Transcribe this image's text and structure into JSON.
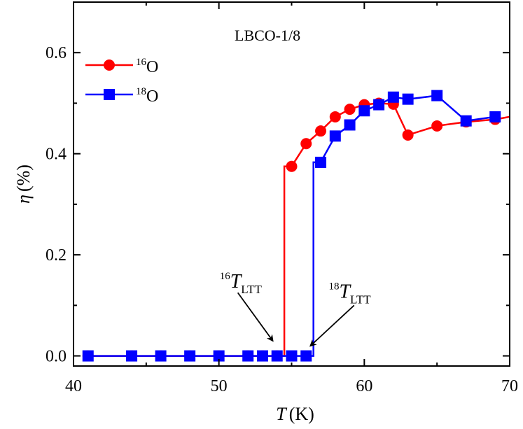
{
  "chart_data": {
    "type": "line",
    "title": "LBCO-1/8",
    "xlabel": {
      "symbol": "T",
      "unit": "(K)"
    },
    "ylabel": {
      "symbol": "η",
      "unit": "(%)"
    },
    "xlim": [
      40,
      70
    ],
    "ylim": [
      -0.02,
      0.7
    ],
    "xticks": [
      40,
      50,
      60,
      70
    ],
    "yticks": [
      0.0,
      0.2,
      0.4,
      0.6
    ],
    "xtick_labels": [
      "40",
      "50",
      "60",
      "70"
    ],
    "ytick_labels": [
      "0.0",
      "0.2",
      "0.4",
      "0.6"
    ],
    "grid": false,
    "legend_position": "top-left",
    "series": [
      {
        "name": "16O",
        "label_sup": "16",
        "label_main": "O",
        "color": "#ff0000",
        "marker": "circle",
        "x": [
          41,
          44,
          46,
          48,
          50,
          52,
          53,
          54,
          55,
          56,
          57,
          58,
          59,
          60,
          61,
          62,
          63,
          65,
          67,
          69,
          70
        ],
        "y": [
          0,
          0,
          0,
          0,
          0,
          0,
          0,
          0,
          0.375,
          0.42,
          0.445,
          0.473,
          0.488,
          0.497,
          0.5,
          0.498,
          0.437,
          0.455,
          0.463,
          0.468,
          0.473
        ]
      },
      {
        "name": "18O",
        "label_sup": "18",
        "label_main": "O",
        "color": "#0000ff",
        "marker": "square",
        "x": [
          41,
          44,
          46,
          48,
          50,
          52,
          53,
          54,
          55,
          56,
          57,
          58,
          59,
          60,
          61,
          62,
          63,
          65,
          67,
          69
        ],
        "y": [
          0,
          0,
          0,
          0,
          0,
          0,
          0,
          0,
          0,
          0,
          0.383,
          0.435,
          0.457,
          0.485,
          0.497,
          0.512,
          0.508,
          0.515,
          0.465,
          0.473
        ]
      }
    ],
    "vertical_transitions": [
      {
        "series": "16O",
        "x": 54.5,
        "y_from": 0.0,
        "y_to": 0.375
      },
      {
        "series": "18O",
        "x": 56.5,
        "y_from": 0.0,
        "y_to": 0.383
      }
    ],
    "annotations": [
      {
        "sup": "16",
        "main": "T",
        "sub": "LTT",
        "text_at": [
          51.5,
          0.135
        ],
        "arrow_from": [
          51.3,
          0.125
        ],
        "arrow_to": [
          53.7,
          0.03
        ]
      },
      {
        "sup": "18",
        "main": "T",
        "sub": "LTT",
        "text_at": [
          59.0,
          0.115
        ],
        "arrow_from": [
          59.3,
          0.1
        ],
        "arrow_to": [
          56.3,
          0.02
        ]
      }
    ]
  }
}
